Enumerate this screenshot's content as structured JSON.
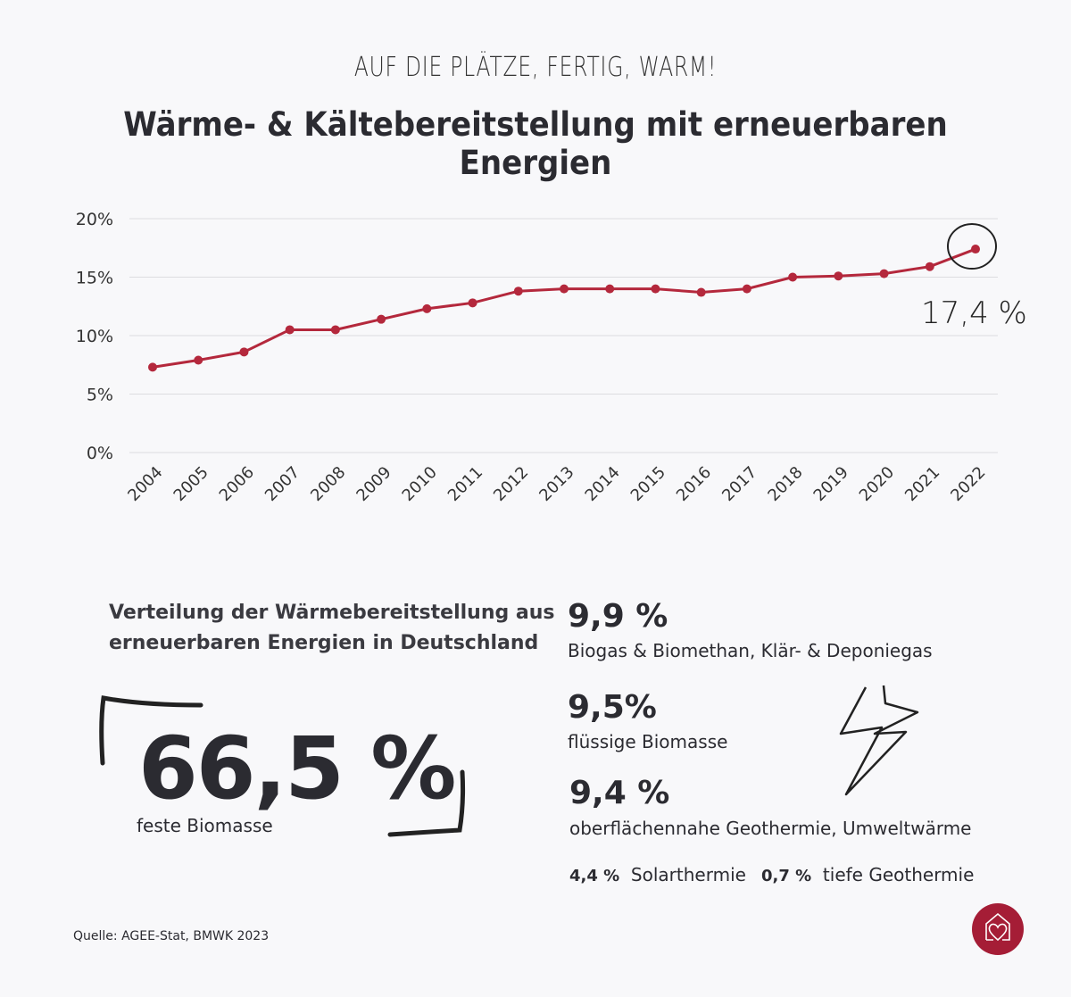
{
  "header": {
    "kicker": "AUF DIE PLÄTZE, FERTIG, WARM!",
    "title": "Wärme- & Kältebereitstellung mit erneuerbaren Energien"
  },
  "chart_data": {
    "type": "line",
    "x": [
      "2004",
      "2005",
      "2006",
      "2007",
      "2008",
      "2009",
      "2010",
      "2011",
      "2012",
      "2013",
      "2014",
      "2015",
      "2016",
      "2017",
      "2018",
      "2019",
      "2020",
      "2021",
      "2022"
    ],
    "series": [
      {
        "values": [
          7.3,
          7.9,
          8.6,
          10.5,
          10.5,
          11.4,
          12.3,
          12.8,
          13.8,
          14.0,
          14.0,
          14.0,
          13.7,
          14.0,
          15.0,
          15.1,
          15.3,
          15.9,
          17.4
        ]
      }
    ],
    "ylim": [
      0,
      20
    ],
    "yticks": [
      "0%",
      "5%",
      "10%",
      "15%",
      "20%"
    ],
    "grid": true,
    "color": "#b4283c",
    "annotation": "17,4 %"
  },
  "distribution": {
    "title_line1": "Verteilung der Wärmebereitstellung aus",
    "title_line2": "erneuerbaren Energien in Deutschland",
    "main": {
      "value": "66,5 %",
      "label": "feste Biomasse"
    },
    "items": [
      {
        "value": "9,9 %",
        "label": "Biogas & Biomethan, Klär- & Deponiegas"
      },
      {
        "value": "9,5%",
        "label": "flüssige Biomasse"
      },
      {
        "value": "9,4 %",
        "label": "oberflächennahe Geothermie, Umweltwärme"
      }
    ],
    "minor": [
      {
        "value": "4,4 %",
        "label": "Solarthermie"
      },
      {
        "value": "0,7 %",
        "label": "tiefe Geothermie"
      }
    ]
  },
  "source": "Quelle: AGEE-Stat, BMWK 2023",
  "logo": {
    "icon": "house-heart-icon",
    "color": "#a51d36"
  }
}
